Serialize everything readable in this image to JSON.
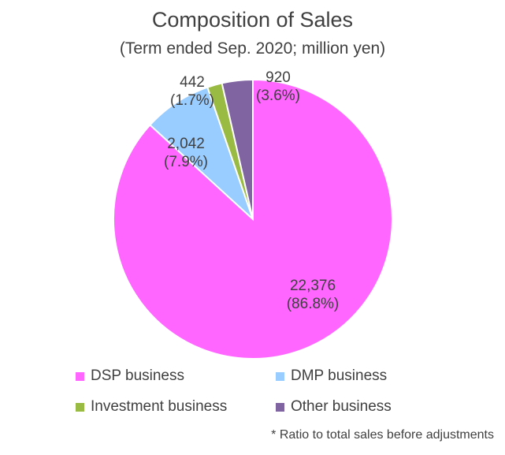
{
  "chart_data": {
    "type": "pie",
    "title": "Composition of Sales",
    "subtitle": "(Term ended Sep. 2020; million yen)",
    "slices": [
      {
        "name": "DSP business",
        "value": 22376,
        "percent_label": "(86.8%)",
        "value_label": "22,376",
        "color": "#ff66ff"
      },
      {
        "name": "DMP business",
        "value": 2042,
        "percent_label": "(7.9%)",
        "value_label": "2,042",
        "color": "#99ccff"
      },
      {
        "name": "Investment business",
        "value": 442,
        "percent_label": "(1.7%)",
        "value_label": "442",
        "color": "#99bb44"
      },
      {
        "name": "Other business",
        "value": 920,
        "percent_label": "(3.6%)",
        "value_label": "920",
        "color": "#8064a2"
      }
    ],
    "legend_position": "bottom",
    "footnote": "* Ratio to total sales before adjustments"
  }
}
